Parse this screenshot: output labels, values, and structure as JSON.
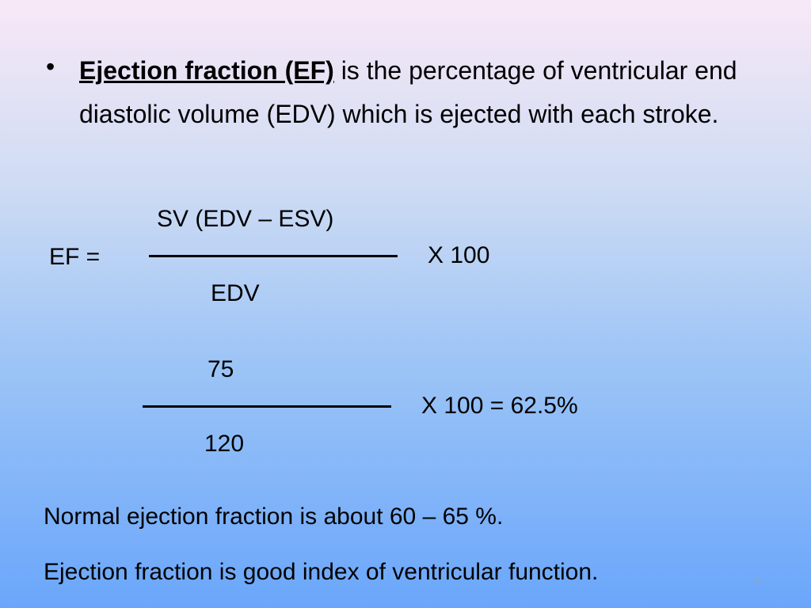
{
  "bullet": {
    "term": "Ejection fraction (EF)",
    "text": "is the percentage of ventricular end diastolic volume (EDV) which is ejected with each stroke."
  },
  "formula": {
    "lhs": "EF =",
    "numerator": "SV (EDV – ESV)",
    "denominator": "EDV",
    "multiplier": "X 100"
  },
  "example": {
    "numerator": "75",
    "denominator": "120",
    "result": "X 100 = 62.5%"
  },
  "notes": [
    "Normal ejection fraction is about 60 – 65 %.",
    "Ejection fraction is good index of ventricular function."
  ],
  "page_number": "6"
}
